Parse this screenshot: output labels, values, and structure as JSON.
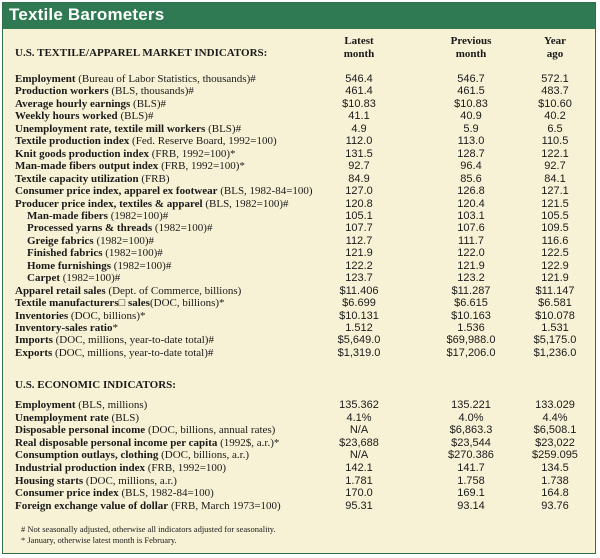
{
  "title": "Textile Barometers",
  "columns": {
    "latest": [
      "Latest",
      "month"
    ],
    "previous": [
      "Previous",
      "month"
    ],
    "year_ago": [
      "Year",
      "ago"
    ]
  },
  "section1": {
    "heading": "U.S. TEXTILE/APPAREL MARKET INDICATORS:",
    "rows": [
      {
        "name": "Employment",
        "detail": " (Bureau of Labor Statistics, thousands)#",
        "latest": "546.4",
        "previous": "546.7",
        "year_ago": "572.1",
        "indent": false
      },
      {
        "name": "Production workers",
        "detail": " (BLS, thousands)#",
        "latest": "461.4",
        "previous": "461.5",
        "year_ago": "483.7",
        "indent": false
      },
      {
        "name": "Average hourly earnings",
        "detail": " (BLS)#",
        "latest": "$10.83",
        "previous": "$10.83",
        "year_ago": "$10.60",
        "indent": false
      },
      {
        "name": "Weekly hours worked",
        "detail": " (BLS)#",
        "latest": "41.1",
        "previous": "40.9",
        "year_ago": "40.2",
        "indent": false
      },
      {
        "name": "Unemployment rate, textile mill workers",
        "detail": " (BLS)#",
        "latest": "4.9",
        "previous": "5.9",
        "year_ago": "6.5",
        "indent": false
      },
      {
        "name": "Textile production index",
        "detail": " (Fed. Reserve Board, 1992=100)",
        "latest": "112.0",
        "previous": "113.0",
        "year_ago": "110.5",
        "indent": false
      },
      {
        "name": "Knit goods production index",
        "detail": " (FRB, 1992=100)*",
        "latest": "131.5",
        "previous": "128.7",
        "year_ago": "122.1",
        "indent": false
      },
      {
        "name": "Man-made fibers output index",
        "detail": " (FRB, 1992=100)*",
        "latest": "92.7",
        "previous": "96.4",
        "year_ago": "92.7",
        "indent": false
      },
      {
        "name": "Textile capacity utilization",
        "detail": " (FRB)",
        "latest": "84.9",
        "previous": "85.6",
        "year_ago": "84.1",
        "indent": false
      },
      {
        "name": "Consumer price index, apparel ex footwear",
        "detail": " (BLS, 1982-84=100)",
        "latest": "127.0",
        "previous": "126.8",
        "year_ago": "127.1",
        "indent": false
      },
      {
        "name": "Producer price index, textiles & apparel",
        "detail": " (BLS, 1982=100)#",
        "latest": "120.8",
        "previous": "120.4",
        "year_ago": "121.5",
        "indent": false
      },
      {
        "name": "Man-made fibers",
        "detail": " (1982=100)#",
        "latest": "105.1",
        "previous": "103.1",
        "year_ago": "105.5",
        "indent": true
      },
      {
        "name": "Processed yarns & threads",
        "detail": " (1982=100)#",
        "latest": "107.7",
        "previous": "107.6",
        "year_ago": "109.5",
        "indent": true
      },
      {
        "name": "Greige fabrics",
        "detail": " (1982=100)#",
        "latest": "112.7",
        "previous": "111.7",
        "year_ago": "116.6",
        "indent": true
      },
      {
        "name": "Finished fabrics",
        "detail": " (1982=100)#",
        "latest": "121.9",
        "previous": "122.0",
        "year_ago": "122.5",
        "indent": true
      },
      {
        "name": "Home furnishings",
        "detail": " (1982=100)#",
        "latest": "122.2",
        "previous": "121.9",
        "year_ago": "122.9",
        "indent": true
      },
      {
        "name": "Carpet",
        "detail": " (1982=100)#",
        "latest": "123.7",
        "previous": "123.2",
        "year_ago": "121.9",
        "indent": true
      },
      {
        "name": "Apparel retail sales",
        "detail": " (Dept. of Commerce, billions)",
        "latest": "$11.406",
        "previous": "$11.287",
        "year_ago": "$11.147",
        "indent": false
      },
      {
        "name": "Textile manufacturers□ sales",
        "detail": "(DOC, billions)*",
        "latest": "$6.699",
        "previous": "$6.615",
        "year_ago": "$6.581",
        "indent": false
      },
      {
        "name": "Inventories",
        "detail": " (DOC, billions)*",
        "latest": "$10.131",
        "previous": "$10.163",
        "year_ago": "$10.078",
        "indent": false
      },
      {
        "name": "Inventory-sales ratio",
        "detail": "*",
        "latest": "1.512",
        "previous": "1.536",
        "year_ago": "1.531",
        "indent": false
      },
      {
        "name": "Imports",
        "detail": " (DOC, millions, year-to-date total)#",
        "latest": "$5,649.0",
        "previous": "$69,988.0",
        "year_ago": "$5,175.0",
        "indent": false
      },
      {
        "name": "Exports",
        "detail": " (DOC, millions, year-to-date total)#",
        "latest": "$1,319.0",
        "previous": "$17,206.0",
        "year_ago": "$1,236.0",
        "indent": false
      }
    ]
  },
  "section2": {
    "heading": "U.S. ECONOMIC INDICATORS:",
    "rows": [
      {
        "name": "Employment",
        "detail": " (BLS, millions)",
        "latest": "135.362",
        "previous": "135.221",
        "year_ago": "133.029",
        "indent": false
      },
      {
        "name": "Unemployment rate",
        "detail": " (BLS)",
        "latest": "4.1%",
        "previous": "4.0%",
        "year_ago": "4.4%",
        "indent": false
      },
      {
        "name": "Disposable personal income",
        "detail": " (DOC, billions, annual rates)",
        "latest": "N/A",
        "previous": "$6,863.3",
        "year_ago": "$6,508.1",
        "indent": false
      },
      {
        "name": "Real disposable personal income per capita",
        "detail": " (1992$, a.r.)*",
        "latest": "$23,688",
        "previous": "$23,544",
        "year_ago": "$23,022",
        "indent": false
      },
      {
        "name": "Consumption outlays, clothing",
        "detail": " (DOC, billions, a.r.)",
        "latest": "N/A",
        "previous": "$270.386",
        "year_ago": "$259.095",
        "indent": false
      },
      {
        "name": "Industrial production index",
        "detail": " (FRB, 1992=100)",
        "latest": "142.1",
        "previous": "141.7",
        "year_ago": "134.5",
        "indent": false
      },
      {
        "name": "Housing starts",
        "detail": " (DOC, millions, a.r.)",
        "latest": "1.781",
        "previous": "1.758",
        "year_ago": "1.738",
        "indent": false
      },
      {
        "name": "Consumer price index",
        "detail": " (BLS, 1982-84=100)",
        "latest": "170.0",
        "previous": "169.1",
        "year_ago": "164.8",
        "indent": false
      },
      {
        "name": "Foreign exchange value of dollar",
        "detail": " (FRB, March 1973=100)",
        "latest": "95.31",
        "previous": "93.14",
        "year_ago": "93.76",
        "indent": false
      }
    ]
  },
  "footnotes": [
    "# Not seasonally adjusted, otherwise all indicators adjusted for seasonality.",
    "* January, otherwise latest month is February."
  ]
}
